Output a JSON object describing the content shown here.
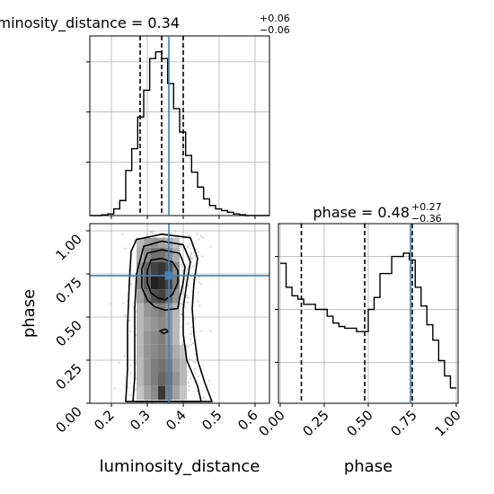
{
  "chart_data": [
    {
      "type": "histogram",
      "panel": "luminosity_distance-marginal",
      "title_param": "luminosity_distance",
      "title_value": "0.34",
      "title_plus": "+0.06",
      "title_minus": "−0.06",
      "x_range": [
        0.14,
        0.64
      ],
      "bin_edges": [
        0.14,
        0.1567,
        0.1733,
        0.19,
        0.2067,
        0.2233,
        0.24,
        0.2567,
        0.2733,
        0.29,
        0.3067,
        0.3233,
        0.34,
        0.3567,
        0.3733,
        0.39,
        0.4067,
        0.4233,
        0.44,
        0.4567,
        0.4733,
        0.49,
        0.5067,
        0.5233,
        0.54,
        0.5567,
        0.5733,
        0.59,
        0.6067,
        0.6233,
        0.64
      ],
      "counts": [
        0.0,
        0.0,
        0.004,
        0.01,
        0.04,
        0.09,
        0.27,
        0.4,
        0.59,
        0.75,
        0.94,
        0.98,
        0.94,
        0.79,
        0.64,
        0.5,
        0.36,
        0.26,
        0.17,
        0.1,
        0.06,
        0.04,
        0.03,
        0.02,
        0.01,
        0.005,
        0.0,
        0.0,
        0.0,
        0.0
      ],
      "quantiles": [
        0.28,
        0.34,
        0.4
      ],
      "truth": 0.36,
      "grid": true
    },
    {
      "type": "histogram",
      "panel": "phase-marginal",
      "title_param": "phase",
      "title_value": "0.48",
      "title_plus": "+0.27",
      "title_minus": "−0.36",
      "x_range": [
        0.0,
        1.0
      ],
      "bin_edges": [
        0.0,
        0.0333,
        0.0667,
        0.1,
        0.1333,
        0.1667,
        0.2,
        0.2333,
        0.2667,
        0.3,
        0.3333,
        0.3667,
        0.4,
        0.4333,
        0.4667,
        0.5,
        0.5333,
        0.5667,
        0.6,
        0.6333,
        0.6667,
        0.7,
        0.7333,
        0.7667,
        0.8,
        0.8333,
        0.8667,
        0.9,
        0.9333,
        0.9667,
        1.0
      ],
      "counts": [
        0.82,
        0.68,
        0.63,
        0.61,
        0.58,
        0.58,
        0.55,
        0.55,
        0.51,
        0.47,
        0.45,
        0.44,
        0.44,
        0.42,
        0.42,
        0.55,
        0.62,
        0.76,
        0.76,
        0.86,
        0.86,
        0.88,
        0.84,
        0.68,
        0.57,
        0.46,
        0.37,
        0.25,
        0.16,
        0.09
      ],
      "quantiles": [
        0.12,
        0.48,
        0.75
      ],
      "truth": 0.74,
      "xticks": [
        "0.00",
        "0.25",
        "0.50",
        "0.75",
        "1.00"
      ],
      "xlabel": "phase",
      "grid": true
    },
    {
      "type": "heatmap",
      "panel": "luminosity_distance-vs-phase",
      "x_range": [
        0.14,
        0.64
      ],
      "y_range": [
        0.0,
        1.0
      ],
      "xticks": [
        "0.2",
        "0.3",
        "0.4",
        "0.5",
        "0.6"
      ],
      "yticks": [
        "0.00",
        "0.25",
        "0.50",
        "0.75",
        "1.00"
      ],
      "xlabel": "luminosity_distance",
      "ylabel": "phase",
      "truth": [
        0.36,
        0.74
      ],
      "density_cells": [
        {
          "x": 0.28,
          "y": 0.92,
          "v": 0.3
        },
        {
          "x": 0.3,
          "y": 0.92,
          "v": 0.4
        },
        {
          "x": 0.32,
          "y": 0.92,
          "v": 0.45
        },
        {
          "x": 0.34,
          "y": 0.92,
          "v": 0.4
        },
        {
          "x": 0.36,
          "y": 0.92,
          "v": 0.35
        },
        {
          "x": 0.38,
          "y": 0.92,
          "v": 0.25
        },
        {
          "x": 0.28,
          "y": 0.86,
          "v": 0.35
        },
        {
          "x": 0.3,
          "y": 0.86,
          "v": 0.5
        },
        {
          "x": 0.32,
          "y": 0.86,
          "v": 0.6
        },
        {
          "x": 0.34,
          "y": 0.86,
          "v": 0.6
        },
        {
          "x": 0.36,
          "y": 0.86,
          "v": 0.5
        },
        {
          "x": 0.38,
          "y": 0.86,
          "v": 0.35
        },
        {
          "x": 0.28,
          "y": 0.78,
          "v": 0.45
        },
        {
          "x": 0.3,
          "y": 0.78,
          "v": 0.65
        },
        {
          "x": 0.32,
          "y": 0.78,
          "v": 0.8
        },
        {
          "x": 0.34,
          "y": 0.78,
          "v": 0.85
        },
        {
          "x": 0.36,
          "y": 0.78,
          "v": 0.75
        },
        {
          "x": 0.38,
          "y": 0.78,
          "v": 0.5
        },
        {
          "x": 0.28,
          "y": 0.7,
          "v": 0.5
        },
        {
          "x": 0.3,
          "y": 0.7,
          "v": 0.7
        },
        {
          "x": 0.32,
          "y": 0.7,
          "v": 0.95
        },
        {
          "x": 0.34,
          "y": 0.7,
          "v": 0.9
        },
        {
          "x": 0.36,
          "y": 0.7,
          "v": 0.8
        },
        {
          "x": 0.38,
          "y": 0.7,
          "v": 0.55
        },
        {
          "x": 0.28,
          "y": 0.62,
          "v": 0.4
        },
        {
          "x": 0.3,
          "y": 0.62,
          "v": 0.6
        },
        {
          "x": 0.32,
          "y": 0.62,
          "v": 0.75
        },
        {
          "x": 0.34,
          "y": 0.62,
          "v": 0.8
        },
        {
          "x": 0.36,
          "y": 0.62,
          "v": 0.65
        },
        {
          "x": 0.38,
          "y": 0.62,
          "v": 0.45
        },
        {
          "x": 0.28,
          "y": 0.54,
          "v": 0.3
        },
        {
          "x": 0.3,
          "y": 0.54,
          "v": 0.45
        },
        {
          "x": 0.32,
          "y": 0.54,
          "v": 0.5
        },
        {
          "x": 0.34,
          "y": 0.54,
          "v": 0.55
        },
        {
          "x": 0.36,
          "y": 0.54,
          "v": 0.45
        },
        {
          "x": 0.38,
          "y": 0.54,
          "v": 0.3
        },
        {
          "x": 0.28,
          "y": 0.46,
          "v": 0.3
        },
        {
          "x": 0.3,
          "y": 0.46,
          "v": 0.4
        },
        {
          "x": 0.32,
          "y": 0.46,
          "v": 0.45
        },
        {
          "x": 0.34,
          "y": 0.46,
          "v": 0.5
        },
        {
          "x": 0.36,
          "y": 0.46,
          "v": 0.45
        },
        {
          "x": 0.38,
          "y": 0.46,
          "v": 0.3
        },
        {
          "x": 0.28,
          "y": 0.38,
          "v": 0.3
        },
        {
          "x": 0.3,
          "y": 0.38,
          "v": 0.45
        },
        {
          "x": 0.32,
          "y": 0.38,
          "v": 0.5
        },
        {
          "x": 0.34,
          "y": 0.38,
          "v": 0.55
        },
        {
          "x": 0.36,
          "y": 0.38,
          "v": 0.45
        },
        {
          "x": 0.38,
          "y": 0.38,
          "v": 0.3
        },
        {
          "x": 0.28,
          "y": 0.3,
          "v": 0.3
        },
        {
          "x": 0.3,
          "y": 0.3,
          "v": 0.45
        },
        {
          "x": 0.32,
          "y": 0.3,
          "v": 0.5
        },
        {
          "x": 0.34,
          "y": 0.3,
          "v": 0.55
        },
        {
          "x": 0.36,
          "y": 0.3,
          "v": 0.5
        },
        {
          "x": 0.38,
          "y": 0.3,
          "v": 0.35
        },
        {
          "x": 0.4,
          "y": 0.3,
          "v": 0.25
        },
        {
          "x": 0.28,
          "y": 0.22,
          "v": 0.3
        },
        {
          "x": 0.3,
          "y": 0.22,
          "v": 0.45
        },
        {
          "x": 0.32,
          "y": 0.22,
          "v": 0.55
        },
        {
          "x": 0.34,
          "y": 0.22,
          "v": 0.6
        },
        {
          "x": 0.36,
          "y": 0.22,
          "v": 0.55
        },
        {
          "x": 0.38,
          "y": 0.22,
          "v": 0.4
        },
        {
          "x": 0.4,
          "y": 0.22,
          "v": 0.3
        },
        {
          "x": 0.28,
          "y": 0.14,
          "v": 0.3
        },
        {
          "x": 0.3,
          "y": 0.14,
          "v": 0.45
        },
        {
          "x": 0.32,
          "y": 0.14,
          "v": 0.55
        },
        {
          "x": 0.34,
          "y": 0.14,
          "v": 0.65
        },
        {
          "x": 0.36,
          "y": 0.14,
          "v": 0.6
        },
        {
          "x": 0.38,
          "y": 0.14,
          "v": 0.45
        },
        {
          "x": 0.4,
          "y": 0.14,
          "v": 0.3
        },
        {
          "x": 0.28,
          "y": 0.06,
          "v": 0.25
        },
        {
          "x": 0.3,
          "y": 0.06,
          "v": 0.4
        },
        {
          "x": 0.32,
          "y": 0.06,
          "v": 0.5
        },
        {
          "x": 0.34,
          "y": 0.06,
          "v": 0.85
        },
        {
          "x": 0.36,
          "y": 0.06,
          "v": 0.55
        },
        {
          "x": 0.38,
          "y": 0.06,
          "v": 0.4
        },
        {
          "x": 0.4,
          "y": 0.06,
          "v": 0.25
        }
      ],
      "contours": [
        [
          [
            0.31,
            0.83
          ],
          [
            0.34,
            0.84
          ],
          [
            0.37,
            0.82
          ],
          [
            0.385,
            0.77
          ],
          [
            0.385,
            0.7
          ],
          [
            0.37,
            0.63
          ],
          [
            0.35,
            0.6
          ],
          [
            0.33,
            0.61
          ],
          [
            0.31,
            0.64
          ],
          [
            0.3,
            0.7
          ],
          [
            0.3,
            0.77
          ]
        ],
        [
          [
            0.3,
            0.87
          ],
          [
            0.34,
            0.89
          ],
          [
            0.39,
            0.87
          ],
          [
            0.405,
            0.79
          ],
          [
            0.4,
            0.7
          ],
          [
            0.39,
            0.61
          ],
          [
            0.385,
            0.55
          ],
          [
            0.35,
            0.54
          ],
          [
            0.32,
            0.56
          ],
          [
            0.3,
            0.6
          ],
          [
            0.285,
            0.67
          ],
          [
            0.285,
            0.78
          ]
        ],
        [
          [
            0.29,
            0.91
          ],
          [
            0.34,
            0.94
          ],
          [
            0.4,
            0.92
          ],
          [
            0.42,
            0.82
          ],
          [
            0.41,
            0.7
          ],
          [
            0.4,
            0.55
          ],
          [
            0.4,
            0.4
          ],
          [
            0.41,
            0.25
          ],
          [
            0.44,
            0.1
          ],
          [
            0.45,
            0.01
          ],
          [
            0.26,
            0.01
          ],
          [
            0.265,
            0.15
          ],
          [
            0.265,
            0.35
          ],
          [
            0.265,
            0.55
          ],
          [
            0.27,
            0.75
          ]
        ],
        [
          [
            0.27,
            0.95
          ],
          [
            0.34,
            0.98
          ],
          [
            0.42,
            0.96
          ],
          [
            0.44,
            0.84
          ],
          [
            0.43,
            0.7
          ],
          [
            0.425,
            0.55
          ],
          [
            0.43,
            0.4
          ],
          [
            0.44,
            0.25
          ],
          [
            0.46,
            0.12
          ],
          [
            0.48,
            0.01
          ],
          [
            0.24,
            0.01
          ],
          [
            0.245,
            0.2
          ],
          [
            0.245,
            0.45
          ],
          [
            0.25,
            0.7
          ],
          [
            0.255,
            0.88
          ]
        ],
        [
          [
            0.335,
            0.42
          ],
          [
            0.35,
            0.43
          ],
          [
            0.36,
            0.415
          ],
          [
            0.345,
            0.405
          ]
        ]
      ],
      "contour_levels_note": "",
      "grid": true
    }
  ],
  "colors": {
    "truth_line": "#4682b4",
    "lines": "#000000",
    "grid": "#b0b0b0",
    "scatter": "#bdbdbd"
  }
}
